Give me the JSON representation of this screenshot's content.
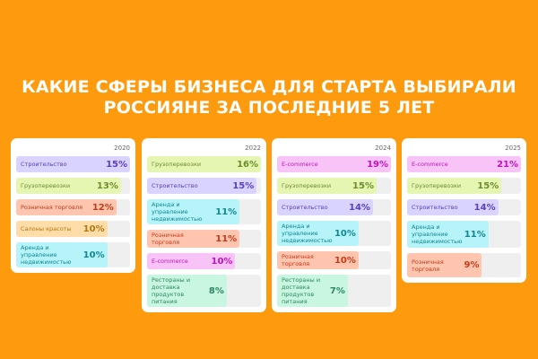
{
  "title_line1": "КАКИЕ СФЕРЫ БИЗНЕСА ДЛЯ СТАРТА ВЫБИРАЛИ",
  "title_line2": "РОССИЯНЕ ЗА ПОСЛЕДНИЕ 5 ЛЕТ",
  "colors": {
    "background": "#FD9A0D",
    "construction": [
      "#D8D3FF",
      "#5A3FC0"
    ],
    "freight": [
      "#E4F6B2",
      "#6E8C2C"
    ],
    "retail": [
      "#FFC5AF",
      "#C63A18"
    ],
    "beauty": [
      "#FFDDA8",
      "#B27810"
    ],
    "realty": [
      "#B6F4FA",
      "#0E8793"
    ],
    "ecommerce": [
      "#F8C3F6",
      "#C012C0"
    ],
    "restaurants": [
      "#C9F6E0",
      "#2E8762"
    ]
  },
  "chart_data": {
    "type": "bar",
    "title": "КАКИЕ СФЕРЫ БИЗНЕСА ДЛЯ СТАРТА ВЫБИРАЛИ РОССИЯНЕ ЗА ПОСЛЕДНИЕ 5 ЛЕТ",
    "unit": "%",
    "panels": [
      {
        "year": "2020",
        "items": [
          {
            "label": "Строительство",
            "value": 15,
            "label_text": "15%",
            "color": "construction"
          },
          {
            "label": "Грузоперевозки",
            "value": 13,
            "label_text": "13%",
            "color": "freight"
          },
          {
            "label": "Розничная торговля",
            "value": 12,
            "label_text": "12%",
            "color": "retail"
          },
          {
            "label": "Салоны красоты",
            "value": 10,
            "label_text": "10%",
            "color": "beauty"
          },
          {
            "label": "Аренда и управление недвижимостью",
            "value": 10,
            "label_text": "10%",
            "color": "realty",
            "lines": 2
          }
        ]
      },
      {
        "year": "2022",
        "items": [
          {
            "label": "Грузоперевозки",
            "value": 16,
            "label_text": "16%",
            "color": "freight"
          },
          {
            "label": "Строительство",
            "value": 15,
            "label_text": "15%",
            "color": "construction"
          },
          {
            "label": "Аренда и управление недвижимостью",
            "value": 11,
            "label_text": "11%",
            "color": "realty",
            "lines": 2
          },
          {
            "label": "Розничная торговля",
            "value": 11,
            "label_text": "11%",
            "color": "retail"
          },
          {
            "label": "E-commerce",
            "value": 10,
            "label_text": "10%",
            "color": "ecommerce"
          },
          {
            "label": "Рестораны и доставка продуктов питания",
            "value": 8,
            "label_text": "8%",
            "color": "restaurants",
            "lines": 2
          }
        ]
      },
      {
        "year": "2024",
        "items": [
          {
            "label": "E-commerce",
            "value": 19,
            "label_text": "19%",
            "color": "ecommerce"
          },
          {
            "label": "Грузоперевозки",
            "value": 15,
            "label_text": "15%",
            "color": "freight"
          },
          {
            "label": "Строительство",
            "value": 14,
            "label_text": "14%",
            "color": "construction"
          },
          {
            "label": "Аренда и управление недвижимостью",
            "value": 10,
            "label_text": "10%",
            "color": "realty",
            "lines": 2
          },
          {
            "label": "Розничная торговля",
            "value": 10,
            "label_text": "10%",
            "color": "retail"
          },
          {
            "label": "Рестораны и доставка продуктов питания",
            "value": 7,
            "label_text": "7%",
            "color": "restaurants",
            "lines": 2
          }
        ]
      },
      {
        "year": "2025",
        "items": [
          {
            "label": "E-commerce",
            "value": 21,
            "label_text": "21%",
            "color": "ecommerce"
          },
          {
            "label": "Грузоперевозки",
            "value": 15,
            "label_text": "15%",
            "color": "freight"
          },
          {
            "label": "Строительство",
            "value": 14,
            "label_text": "14%",
            "color": "construction"
          },
          {
            "label": "Аренда и управление недвижимостью",
            "value": 11,
            "label_text": "11%",
            "color": "realty",
            "lines": 3
          },
          {
            "label": "Розничная торговля",
            "value": 9,
            "label_text": "9%",
            "color": "retail",
            "lines": 2
          }
        ]
      }
    ]
  }
}
